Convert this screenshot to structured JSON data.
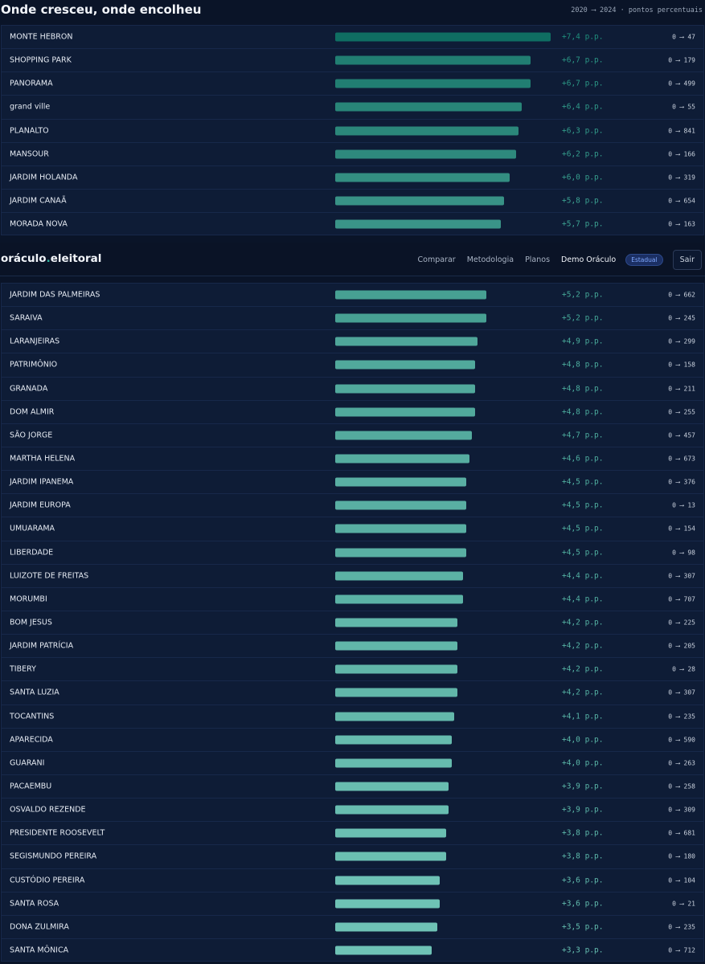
{
  "header": {
    "title": "Onde cresceu, onde encolheu",
    "subtitle": "2020 ⟶ 2024 · pontos percentuais"
  },
  "navbar": {
    "brand_left": "oráculo",
    "brand_dot": ".",
    "brand_right": "eleitoral",
    "links": [
      "Comparar",
      "Metodologia",
      "Planos",
      "Demo Oráculo"
    ],
    "badge": "Estadual",
    "logout": "Sair"
  },
  "chart_data": {
    "type": "bar",
    "x_unit": "p.p.",
    "max_value": 7.4,
    "colors": {
      "strong": "#0f6e62",
      "light": "#6ec2b5",
      "delta_strong": "#1f8e7c",
      "delta_light": "#66bfb1"
    },
    "rows": [
      {
        "name": "MONTE HEBRON",
        "value": 7.4,
        "delta": "+7,4 p.p.",
        "range": "0 ⟶ 47"
      },
      {
        "name": "SHOPPING PARK",
        "value": 6.7,
        "delta": "+6,7 p.p.",
        "range": "0 ⟶ 179"
      },
      {
        "name": "PANORAMA",
        "value": 6.7,
        "delta": "+6,7 p.p.",
        "range": "0 ⟶ 499"
      },
      {
        "name": "grand ville",
        "value": 6.4,
        "delta": "+6,4 p.p.",
        "range": "0 ⟶ 55"
      },
      {
        "name": "PLANALTO",
        "value": 6.3,
        "delta": "+6,3 p.p.",
        "range": "0 ⟶ 841"
      },
      {
        "name": "MANSOUR",
        "value": 6.2,
        "delta": "+6,2 p.p.",
        "range": "0 ⟶ 166"
      },
      {
        "name": "JARDIM HOLANDA",
        "value": 6.0,
        "delta": "+6,0 p.p.",
        "range": "0 ⟶ 319"
      },
      {
        "name": "JARDIM CANAÃ",
        "value": 5.8,
        "delta": "+5,8 p.p.",
        "range": "0 ⟶ 654"
      },
      {
        "name": "MORADA NOVA",
        "value": 5.7,
        "delta": "+5,7 p.p.",
        "range": "0 ⟶ 163"
      },
      {
        "name": "JARDIM DAS PALMEIRAS",
        "value": 5.2,
        "delta": "+5,2 p.p.",
        "range": "0 ⟶ 662"
      },
      {
        "name": "SARAIVA",
        "value": 5.2,
        "delta": "+5,2 p.p.",
        "range": "0 ⟶ 245"
      },
      {
        "name": "LARANJEIRAS",
        "value": 4.9,
        "delta": "+4,9 p.p.",
        "range": "0 ⟶ 299"
      },
      {
        "name": "PATRIMÔNIO",
        "value": 4.8,
        "delta": "+4,8 p.p.",
        "range": "0 ⟶ 158"
      },
      {
        "name": "GRANADA",
        "value": 4.8,
        "delta": "+4,8 p.p.",
        "range": "0 ⟶ 211"
      },
      {
        "name": "DOM ALMIR",
        "value": 4.8,
        "delta": "+4,8 p.p.",
        "range": "0 ⟶ 255"
      },
      {
        "name": "SÃO JORGE",
        "value": 4.7,
        "delta": "+4,7 p.p.",
        "range": "0 ⟶ 457"
      },
      {
        "name": "MARTHA HELENA",
        "value": 4.6,
        "delta": "+4,6 p.p.",
        "range": "0 ⟶ 673"
      },
      {
        "name": "JARDIM IPANEMA",
        "value": 4.5,
        "delta": "+4,5 p.p.",
        "range": "0 ⟶ 376"
      },
      {
        "name": "JARDIM EUROPA",
        "value": 4.5,
        "delta": "+4,5 p.p.",
        "range": "0 ⟶ 13"
      },
      {
        "name": "UMUARAMA",
        "value": 4.5,
        "delta": "+4,5 p.p.",
        "range": "0 ⟶ 154"
      },
      {
        "name": "LIBERDADE",
        "value": 4.5,
        "delta": "+4,5 p.p.",
        "range": "0 ⟶ 98"
      },
      {
        "name": "LUIZOTE DE FREITAS",
        "value": 4.4,
        "delta": "+4,4 p.p.",
        "range": "0 ⟶ 307"
      },
      {
        "name": "MORUMBI",
        "value": 4.4,
        "delta": "+4,4 p.p.",
        "range": "0 ⟶ 707"
      },
      {
        "name": "BOM JESUS",
        "value": 4.2,
        "delta": "+4,2 p.p.",
        "range": "0 ⟶ 225"
      },
      {
        "name": "JARDIM PATRÍCIA",
        "value": 4.2,
        "delta": "+4,2 p.p.",
        "range": "0 ⟶ 205"
      },
      {
        "name": "TIBERY",
        "value": 4.2,
        "delta": "+4,2 p.p.",
        "range": "0 ⟶ 28"
      },
      {
        "name": "SANTA LUZIA",
        "value": 4.2,
        "delta": "+4,2 p.p.",
        "range": "0 ⟶ 307"
      },
      {
        "name": "TOCANTINS",
        "value": 4.1,
        "delta": "+4,1 p.p.",
        "range": "0 ⟶ 235"
      },
      {
        "name": "APARECIDA",
        "value": 4.0,
        "delta": "+4,0 p.p.",
        "range": "0 ⟶ 590"
      },
      {
        "name": "GUARANI",
        "value": 4.0,
        "delta": "+4,0 p.p.",
        "range": "0 ⟶ 263"
      },
      {
        "name": "PACAEMBU",
        "value": 3.9,
        "delta": "+3,9 p.p.",
        "range": "0 ⟶ 258"
      },
      {
        "name": "OSVALDO REZENDE",
        "value": 3.9,
        "delta": "+3,9 p.p.",
        "range": "0 ⟶ 309"
      },
      {
        "name": "PRESIDENTE ROOSEVELT",
        "value": 3.8,
        "delta": "+3,8 p.p.",
        "range": "0 ⟶ 681"
      },
      {
        "name": "SEGISMUNDO PEREIRA",
        "value": 3.8,
        "delta": "+3,8 p.p.",
        "range": "0 ⟶ 180"
      },
      {
        "name": "CUSTÓDIO PEREIRA",
        "value": 3.6,
        "delta": "+3,6 p.p.",
        "range": "0 ⟶ 104"
      },
      {
        "name": "SANTA ROSA",
        "value": 3.6,
        "delta": "+3,6 p.p.",
        "range": "0 ⟶ 21"
      },
      {
        "name": "DONA ZULMIRA",
        "value": 3.5,
        "delta": "+3,5 p.p.",
        "range": "0 ⟶ 235"
      },
      {
        "name": "SANTA MÔNICA",
        "value": 3.3,
        "delta": "+3,3 p.p.",
        "range": "0 ⟶ 712"
      }
    ]
  }
}
